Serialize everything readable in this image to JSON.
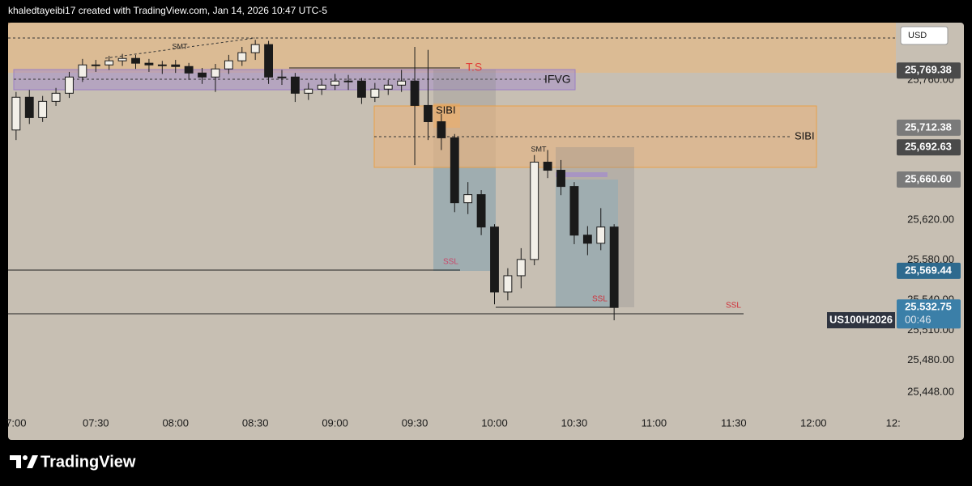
{
  "header": "khaledtayeibi17 created with TradingView.com, Jan 14, 2026 10:47 UTC-5",
  "footer": "TradingView",
  "chart_data": {
    "type": "candlestick",
    "currency": "USD",
    "symbol": "US100H2026",
    "countdown": "00:46",
    "x": [
      420,
      425,
      430,
      435,
      440,
      445,
      450,
      455,
      460,
      465,
      470,
      475,
      480,
      485,
      490,
      495,
      500,
      505,
      510,
      515,
      520,
      525,
      530,
      535,
      540,
      545,
      550,
      555,
      560,
      565,
      570,
      575,
      580,
      585,
      590,
      595,
      600,
      605,
      610,
      615,
      620,
      625,
      630,
      635,
      640,
      645
    ],
    "open": [
      25710.0,
      25742.7,
      25722.4,
      25738.6,
      25746.7,
      25762.9,
      25775.0,
      25775.0,
      25779.1,
      25781.5,
      25776.7,
      25775.0,
      25775.0,
      25773.4,
      25766.9,
      25762.9,
      25771.0,
      25779.1,
      25787.2,
      25795.3,
      25762.9,
      25762.9,
      25746.7,
      25750.8,
      25754.8,
      25758.9,
      25758.9,
      25742.7,
      25750.8,
      25754.8,
      25758.9,
      25734.5,
      25718.3,
      25702.2,
      25637.4,
      25645.5,
      25613.1,
      25548.3,
      25564.5,
      25580.7,
      25677.9,
      25669.8,
      25653.6,
      25605.0,
      25596.9,
      25613.1
    ],
    "high": [
      25748,
      25750,
      25744,
      25752,
      25768,
      25781,
      25780,
      25784,
      25786,
      25785,
      25781,
      25779,
      25780,
      25777,
      25772,
      25776,
      25785,
      25793,
      25800,
      25799,
      25770,
      25767,
      25757,
      25760,
      25766,
      25765,
      25762,
      25757,
      25760,
      25770,
      25793,
      25790,
      25726,
      25706,
      25658,
      25650,
      25616,
      25572,
      25592,
      25685,
      25690,
      25680,
      25658,
      25614,
      25632,
      25616
    ],
    "low": [
      25700,
      25716,
      25718,
      25734,
      25742,
      25758,
      25768,
      25770,
      25774,
      25771,
      25768,
      25766,
      25767,
      25760,
      25756,
      25748,
      25766,
      25774,
      25780,
      25756,
      25755,
      25738,
      25740,
      25745,
      25750,
      25750,
      25736,
      25738,
      25745,
      25748,
      25675,
      25700,
      25690,
      25628,
      25626,
      25605,
      25536,
      25540,
      25552,
      25575,
      25662,
      25645,
      25596,
      25585,
      25590,
      25520
    ],
    "close": [
      25742.7,
      25722.4,
      25738.6,
      25746.7,
      25762.9,
      25775.0,
      25775.0,
      25779.1,
      25781.5,
      25776.7,
      25775.0,
      25775.0,
      25773.4,
      25766.9,
      25762.9,
      25771.0,
      25779.1,
      25787.2,
      25795.3,
      25762.9,
      25762.9,
      25746.7,
      25750.8,
      25754.8,
      25758.9,
      25758.9,
      25742.7,
      25750.8,
      25754.8,
      25758.9,
      25734.5,
      25718.3,
      25702.2,
      25637.4,
      25645.5,
      25613.1,
      25548.3,
      25564.5,
      25580.7,
      25677.9,
      25669.8,
      25653.6,
      25605.0,
      25596.9,
      25613.1,
      25532.8
    ],
    "up_color": "#f2efe8",
    "down_color": "#1a1a1a",
    "xlim": [
      417,
      751
    ],
    "ylim": [
      25428.0,
      25817.2
    ],
    "grid": false,
    "xticks": [
      {
        "value": 420,
        "label": "7:00"
      },
      {
        "value": 450,
        "label": "07:30"
      },
      {
        "value": 480,
        "label": "08:00"
      },
      {
        "value": 510,
        "label": "08:30"
      },
      {
        "value": 540,
        "label": "09:00"
      },
      {
        "value": 570,
        "label": "09:30"
      },
      {
        "value": 600,
        "label": "10:00"
      },
      {
        "value": 630,
        "label": "10:30"
      },
      {
        "value": 660,
        "label": "11:00"
      },
      {
        "value": 690,
        "label": "11:30"
      },
      {
        "value": 720,
        "label": "12:00"
      },
      {
        "value": 750,
        "label": "12:"
      }
    ],
    "yticks": [
      {
        "value": 25448,
        "label": "25,448.00"
      },
      {
        "value": 25480,
        "label": "25,480.00"
      },
      {
        "value": 25510,
        "label": "25,510.00"
      },
      {
        "value": 25540,
        "label": "25,540.00"
      },
      {
        "value": 25580,
        "label": "25,580.00"
      },
      {
        "value": 25620,
        "label": "25,620.00"
      },
      {
        "value": 25760,
        "label": "25,760.00"
      }
    ],
    "price_tags": [
      {
        "value": 25769.38,
        "label": "25,769.38",
        "color": "#4a4a4a"
      },
      {
        "value": 25712.38,
        "label": "25,712.38",
        "color": "#7a7a7a"
      },
      {
        "value": 25692.63,
        "label": "25,692.63",
        "color": "#4a4a4a"
      },
      {
        "value": 25660.6,
        "label": "25,660.60",
        "color": "#7a7a7a"
      },
      {
        "value": 25569.44,
        "label": "25,569.44",
        "color": "#2e6a8e"
      },
      {
        "value": 25532.75,
        "label": "25.532.75",
        "color": "#3b7fa8"
      }
    ],
    "annotations": [
      "SMT",
      "SMT",
      "T.S",
      "IFVG",
      "SIBI",
      "SIBI",
      "SSL",
      "SSL",
      "SSL"
    ]
  }
}
